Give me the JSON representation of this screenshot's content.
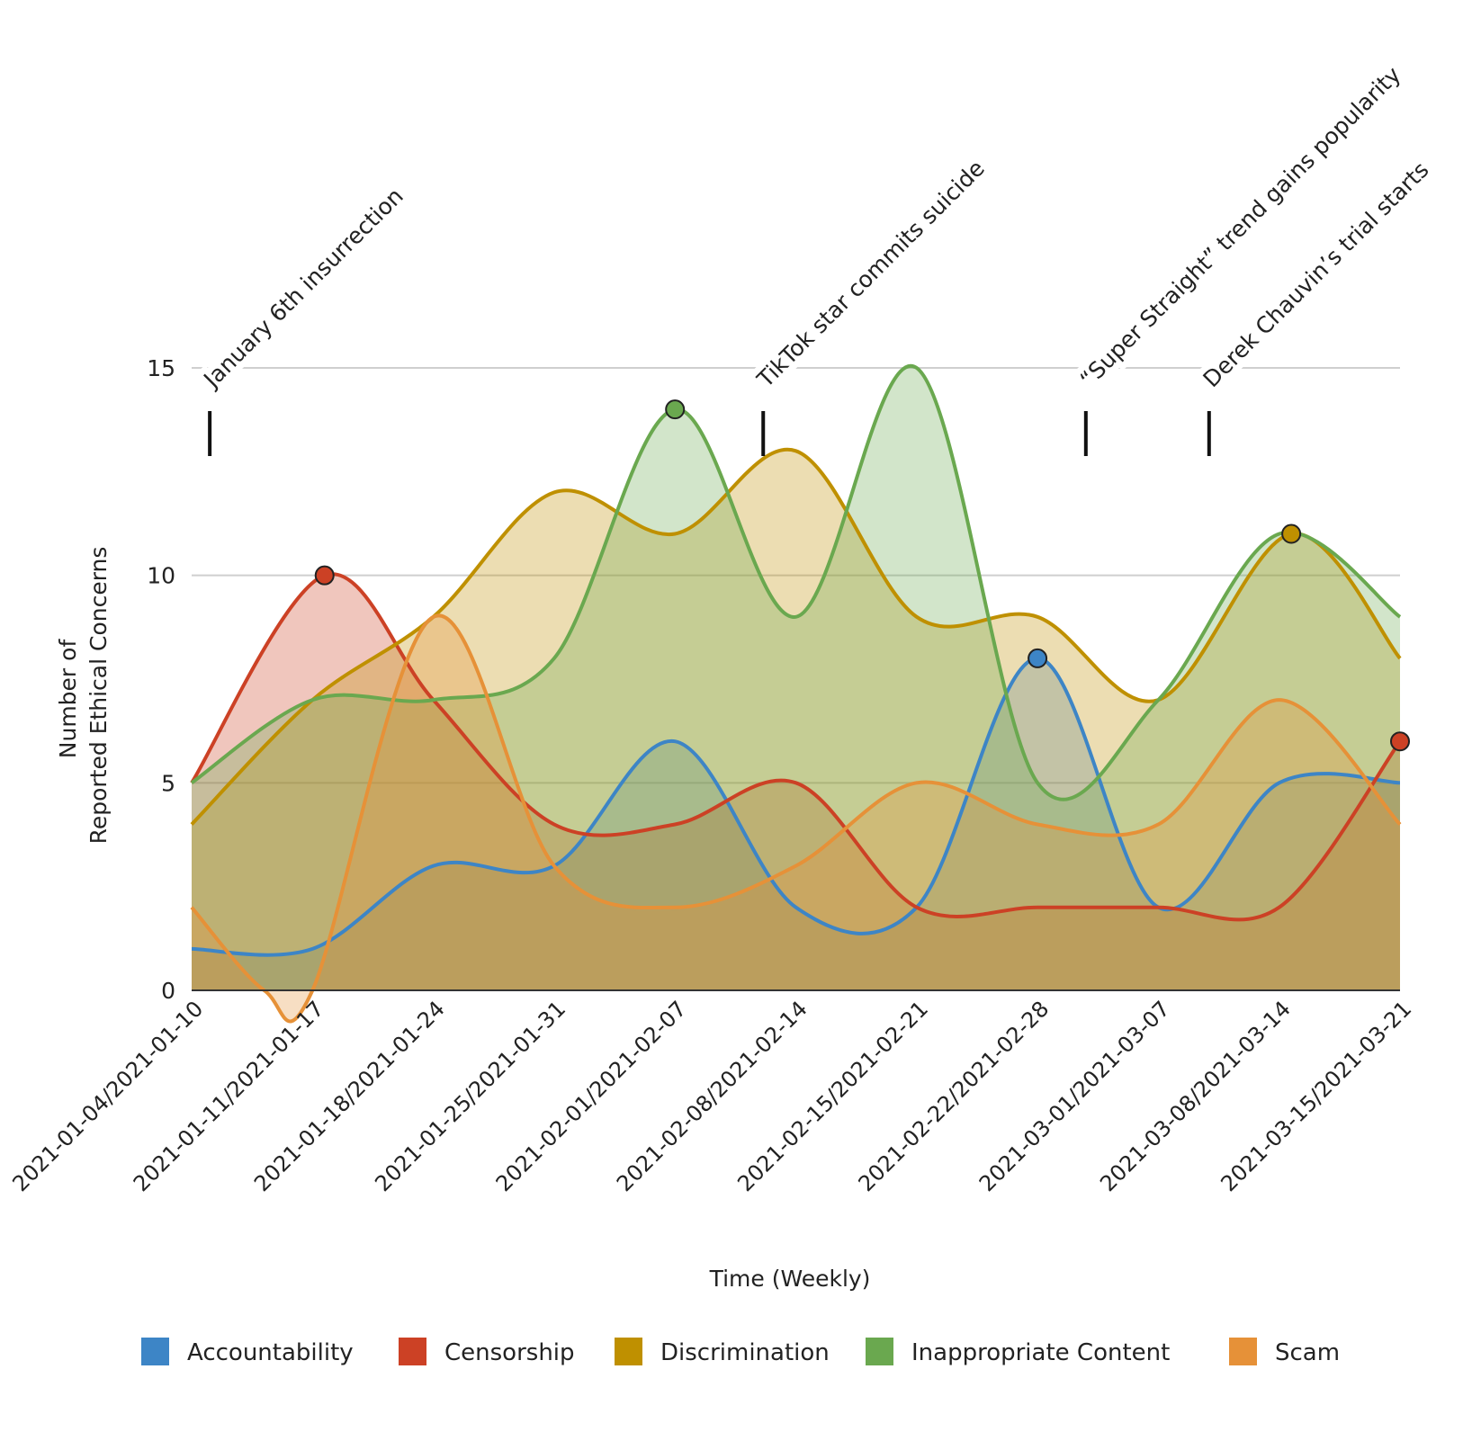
{
  "chart_data": {
    "type": "area",
    "xlabel": "Time (Weekly)",
    "ylabel_lines": [
      "Number of",
      "Reported Ethical Concerns"
    ],
    "ylim": [
      0,
      15
    ],
    "yticks": [
      0,
      5,
      10,
      15
    ],
    "grid": true,
    "legend_position": "bottom",
    "categories": [
      "2021-01-04/2021-01-10",
      "2021-01-11/2021-01-17",
      "2021-01-18/2021-01-24",
      "2021-01-25/2021-01-31",
      "2021-02-01/2021-02-07",
      "2021-02-08/2021-02-14",
      "2021-02-15/2021-02-21",
      "2021-02-22/2021-02-28",
      "2021-03-01/2021-03-07",
      "2021-03-08/2021-03-14",
      "2021-03-15/2021-03-21"
    ],
    "x_data_min": 0,
    "x_data_max": 10,
    "series": [
      {
        "name": "Accountability",
        "color": "#3d85c6",
        "points": [
          [
            0,
            1
          ],
          [
            1,
            1
          ],
          [
            2,
            3
          ],
          [
            3,
            3
          ],
          [
            4,
            6
          ],
          [
            5,
            2
          ],
          [
            6,
            2
          ],
          [
            7,
            8
          ],
          [
            8,
            2
          ],
          [
            9,
            5
          ],
          [
            10,
            5
          ]
        ],
        "highlight": [
          [
            7,
            8
          ]
        ]
      },
      {
        "name": "Censorship",
        "color": "#cc4125",
        "points": [
          [
            0,
            5
          ],
          [
            1.1,
            10
          ],
          [
            2,
            7
          ],
          [
            3,
            4
          ],
          [
            4,
            4
          ],
          [
            5,
            5
          ],
          [
            6,
            2
          ],
          [
            7,
            2
          ],
          [
            8,
            2
          ],
          [
            9,
            2
          ],
          [
            10,
            6
          ]
        ],
        "highlight": [
          [
            1.1,
            10
          ],
          [
            10,
            6
          ]
        ]
      },
      {
        "name": "Discrimination",
        "color": "#bf9000",
        "points": [
          [
            0,
            4
          ],
          [
            1,
            7
          ],
          [
            2,
            9
          ],
          [
            3,
            12
          ],
          [
            4,
            11
          ],
          [
            5,
            13
          ],
          [
            6,
            9
          ],
          [
            7,
            9
          ],
          [
            8,
            7
          ],
          [
            9.1,
            11
          ],
          [
            10,
            8
          ]
        ],
        "highlight": [
          [
            9.1,
            11
          ]
        ]
      },
      {
        "name": "Inappropriate Content",
        "color": "#6aa84f",
        "points": [
          [
            0,
            5
          ],
          [
            1,
            7
          ],
          [
            2,
            7
          ],
          [
            3,
            8
          ],
          [
            4,
            14
          ],
          [
            5,
            9
          ],
          [
            6,
            15
          ],
          [
            7,
            5
          ],
          [
            8,
            7
          ],
          [
            9,
            11
          ],
          [
            10,
            9
          ]
        ],
        "highlight": [
          [
            4,
            14
          ]
        ]
      },
      {
        "name": "Scam",
        "color": "#e69138",
        "points": [
          [
            0,
            2
          ],
          [
            0.6,
            0
          ],
          [
            1,
            0
          ],
          [
            2,
            9
          ],
          [
            3,
            3
          ],
          [
            4,
            2
          ],
          [
            5,
            3
          ],
          [
            6,
            5
          ],
          [
            7,
            4
          ],
          [
            8,
            4
          ],
          [
            9,
            7
          ],
          [
            10,
            4
          ]
        ],
        "highlight": []
      }
    ],
    "annotations": [
      {
        "x": 0.15,
        "text": "January 6th insurrection"
      },
      {
        "x": 4.73,
        "text": "TikTok star commits suicide"
      },
      {
        "x": 7.4,
        "text": "“Super Straight” trend gains popularity"
      },
      {
        "x": 8.42,
        "text": "Derek Chauvin’s trial starts"
      }
    ]
  }
}
